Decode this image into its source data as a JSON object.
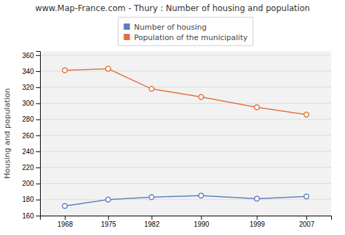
{
  "chart_data": {
    "type": "line",
    "title": "www.Map-France.com - Thury : Number of housing and population",
    "ylabel": "Housing and population",
    "x": [
      1968,
      1975,
      1982,
      1990,
      1999,
      2007
    ],
    "series": [
      {
        "name": "Number of housing",
        "color": "#5b7fbf",
        "marker": "circle",
        "values": [
          172,
          180,
          183,
          185,
          181,
          184
        ]
      },
      {
        "name": "Population of the municipality",
        "color": "#e07040",
        "marker": "circle",
        "values": [
          341,
          343,
          318,
          308,
          295,
          286
        ]
      }
    ],
    "xlim": [
      1964,
      2011
    ],
    "xticks": [
      1968,
      1975,
      1982,
      1990,
      1999,
      2007
    ],
    "ylim": [
      160,
      365
    ],
    "yticks": [
      160,
      180,
      200,
      220,
      240,
      260,
      280,
      300,
      320,
      340,
      360
    ],
    "grid": true,
    "legend": "top"
  }
}
